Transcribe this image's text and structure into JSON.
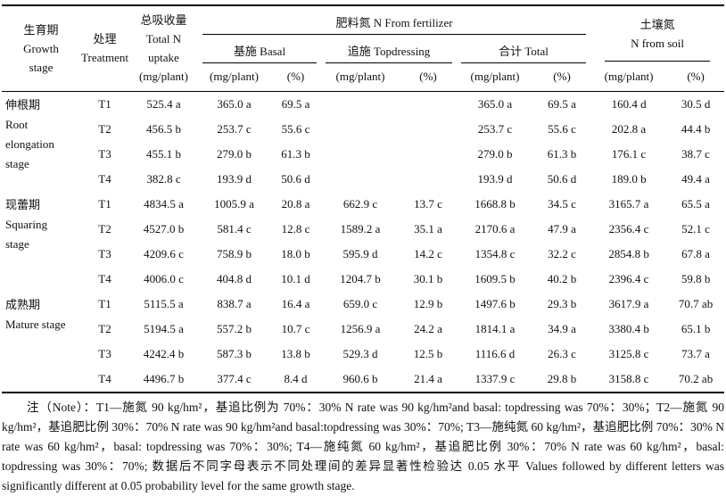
{
  "table": {
    "header": {
      "growth_stage": "生育期\nGrowth\nstage",
      "treatment": "处理\nTreatment",
      "total_uptake": "总吸收量\nTotal N\nuptake\n(mg/plant)",
      "fertilizer_group": "肥料氮 N From fertilizer",
      "basal_group": "基施 Basal",
      "topdressing_group": "追施 Topdressing",
      "total_group": "合计 Total",
      "soil_group": "土壤氮\nN from soil",
      "unit_mg": "(mg/plant)",
      "unit_pct": "(%)"
    },
    "groups": [
      {
        "stage": "伸根期\nRoot\nelongation\nstage",
        "rows": [
          [
            "T1",
            "525.4 a",
            "365.0 a",
            "69.5 a",
            "",
            "",
            "365.0 a",
            "69.5 a",
            "160.4 d",
            "30.5 d"
          ],
          [
            "T2",
            "456.5 b",
            "253.7 c",
            "55.6 c",
            "",
            "",
            "253.7 c",
            "55.6 c",
            "202.8 a",
            "44.4 b"
          ],
          [
            "T3",
            "455.1 b",
            "279.0 b",
            "61.3 b",
            "",
            "",
            "279.0 b",
            "61.3 b",
            "176.1 c",
            "38.7 c"
          ],
          [
            "T4",
            "382.8 c",
            "193.9 d",
            "50.6 d",
            "",
            "",
            "193.9 d",
            "50.6 d",
            "189.0 b",
            "49.4 a"
          ]
        ]
      },
      {
        "stage": "现蕾期\nSquaring\nstage",
        "rows": [
          [
            "T1",
            "4834.5 a",
            "1005.9 a",
            "20.8 a",
            "662.9 c",
            "13.7 c",
            "1668.8 b",
            "34.5 c",
            "3165.7 a",
            "65.5 a"
          ],
          [
            "T2",
            "4527.0 b",
            "581.4 c",
            "12.8 c",
            "1589.2 a",
            "35.1 a",
            "2170.6 a",
            "47.9 a",
            "2356.4 c",
            "52.1 c"
          ],
          [
            "T3",
            "4209.6 c",
            "758.9 b",
            "18.0 b",
            "595.9 d",
            "14.2 c",
            "1354.8 c",
            "32.2 c",
            "2854.8 b",
            "67.8 a"
          ],
          [
            "T4",
            "4006.0 c",
            "404.8 d",
            "10.1 d",
            "1204.7 b",
            "30.1 b",
            "1609.5 b",
            "40.2 b",
            "2396.4 c",
            "59.8 b"
          ]
        ]
      },
      {
        "stage": "成熟期\nMature stage",
        "rows": [
          [
            "T1",
            "5115.5 a",
            "838.7 a",
            "16.4 a",
            "659.0 c",
            "12.9 b",
            "1497.6 b",
            "29.3 b",
            "3617.9 a",
            "70.7 ab"
          ],
          [
            "T2",
            "5194.5 a",
            "557.2 b",
            "10.7 c",
            "1256.9 a",
            "24.2 a",
            "1814.1 a",
            "34.9 a",
            "3380.4 b",
            "65.1 b"
          ],
          [
            "T3",
            "4242.4 b",
            "587.3 b",
            "13.8 b",
            "529.3 d",
            "12.5 b",
            "1116.6 d",
            "26.3 c",
            "3125.8 c",
            "73.7 a"
          ],
          [
            "T4",
            "4496.7 b",
            "377.4 c",
            "8.4 d",
            "960.6 b",
            "21.4 a",
            "1337.9 c",
            "29.8 b",
            "3158.8 c",
            "70.2 ab"
          ]
        ]
      }
    ]
  },
  "note": "注（Note）：T1—施氮 90 kg/hm²，基追比例为 70%：30% N rate was 90 kg/hm²and basal: topdressing was 70%：30%；T2—施氮 90 kg/hm²，基追肥比例 30%：70% N rate was 90 kg/hm²and basal:topdressing was 30%：70%; T3—施纯氮 60 kg/hm²，基追肥比例 70%：30% N rate was 60 kg/hm²，basal: topdressing was 70%：30%; T4—施纯氮 60 kg/hm²，基追肥比例 30%：70% N rate was 60 kg/hm²，basal: topdressing was 30%：70%; 数据后不同字母表示不同处理间的差异显著性检验达 0.05 水平 Values followed by different letters was significantly different at 0.05 probability level for the same growth stage."
}
